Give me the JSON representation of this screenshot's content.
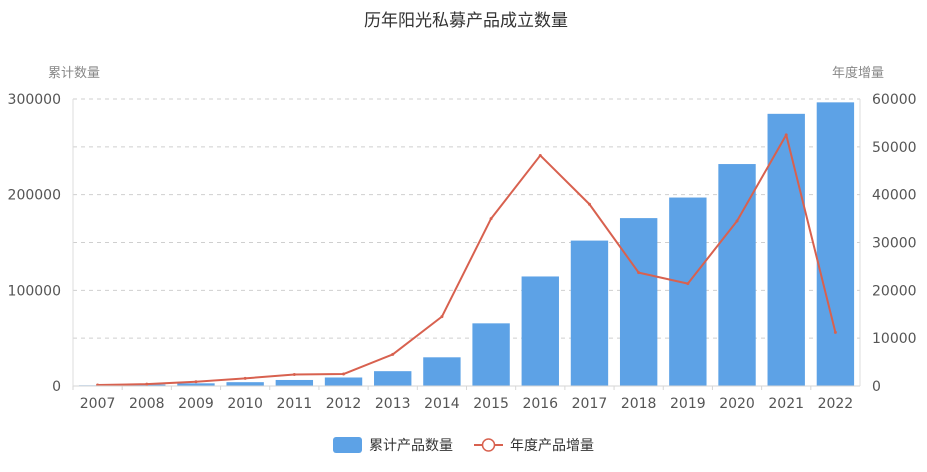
{
  "chart_data": {
    "type": "bar",
    "title": "历年阳光私募产品成立数量",
    "xlabel": "",
    "ylabel": "累计数量",
    "ylabel_right": "年度增量",
    "categories": [
      "2007",
      "2008",
      "2009",
      "2010",
      "2011",
      "2012",
      "2013",
      "2014",
      "2015",
      "2016",
      "2017",
      "2018",
      "2019",
      "2020",
      "2021",
      "2022"
    ],
    "ylim": [
      0,
      300000
    ],
    "ylim_right": [
      0,
      60000
    ],
    "yticks": [
      "0",
      "100000",
      "200000",
      "300000"
    ],
    "yticks_right": [
      "0",
      "10000",
      "20000",
      "30000",
      "40000",
      "50000",
      "60000"
    ],
    "grid": true,
    "legend_position": "bottom-center",
    "series": [
      {
        "name": "累计产品数量",
        "type": "bar",
        "axis": "left",
        "color": "#5da2e6",
        "values": [
          700,
          1500,
          2800,
          4000,
          6300,
          8900,
          15500,
          30000,
          65500,
          114500,
          152000,
          175500,
          197000,
          232000,
          284500,
          296500
        ]
      },
      {
        "name": "年度产品增量",
        "type": "line",
        "axis": "right",
        "color": "#d8614f",
        "values": [
          200,
          400,
          900,
          1600,
          2400,
          2500,
          6600,
          14500,
          35000,
          48200,
          38000,
          23700,
          21400,
          34500,
          52500,
          11200
        ]
      }
    ]
  }
}
